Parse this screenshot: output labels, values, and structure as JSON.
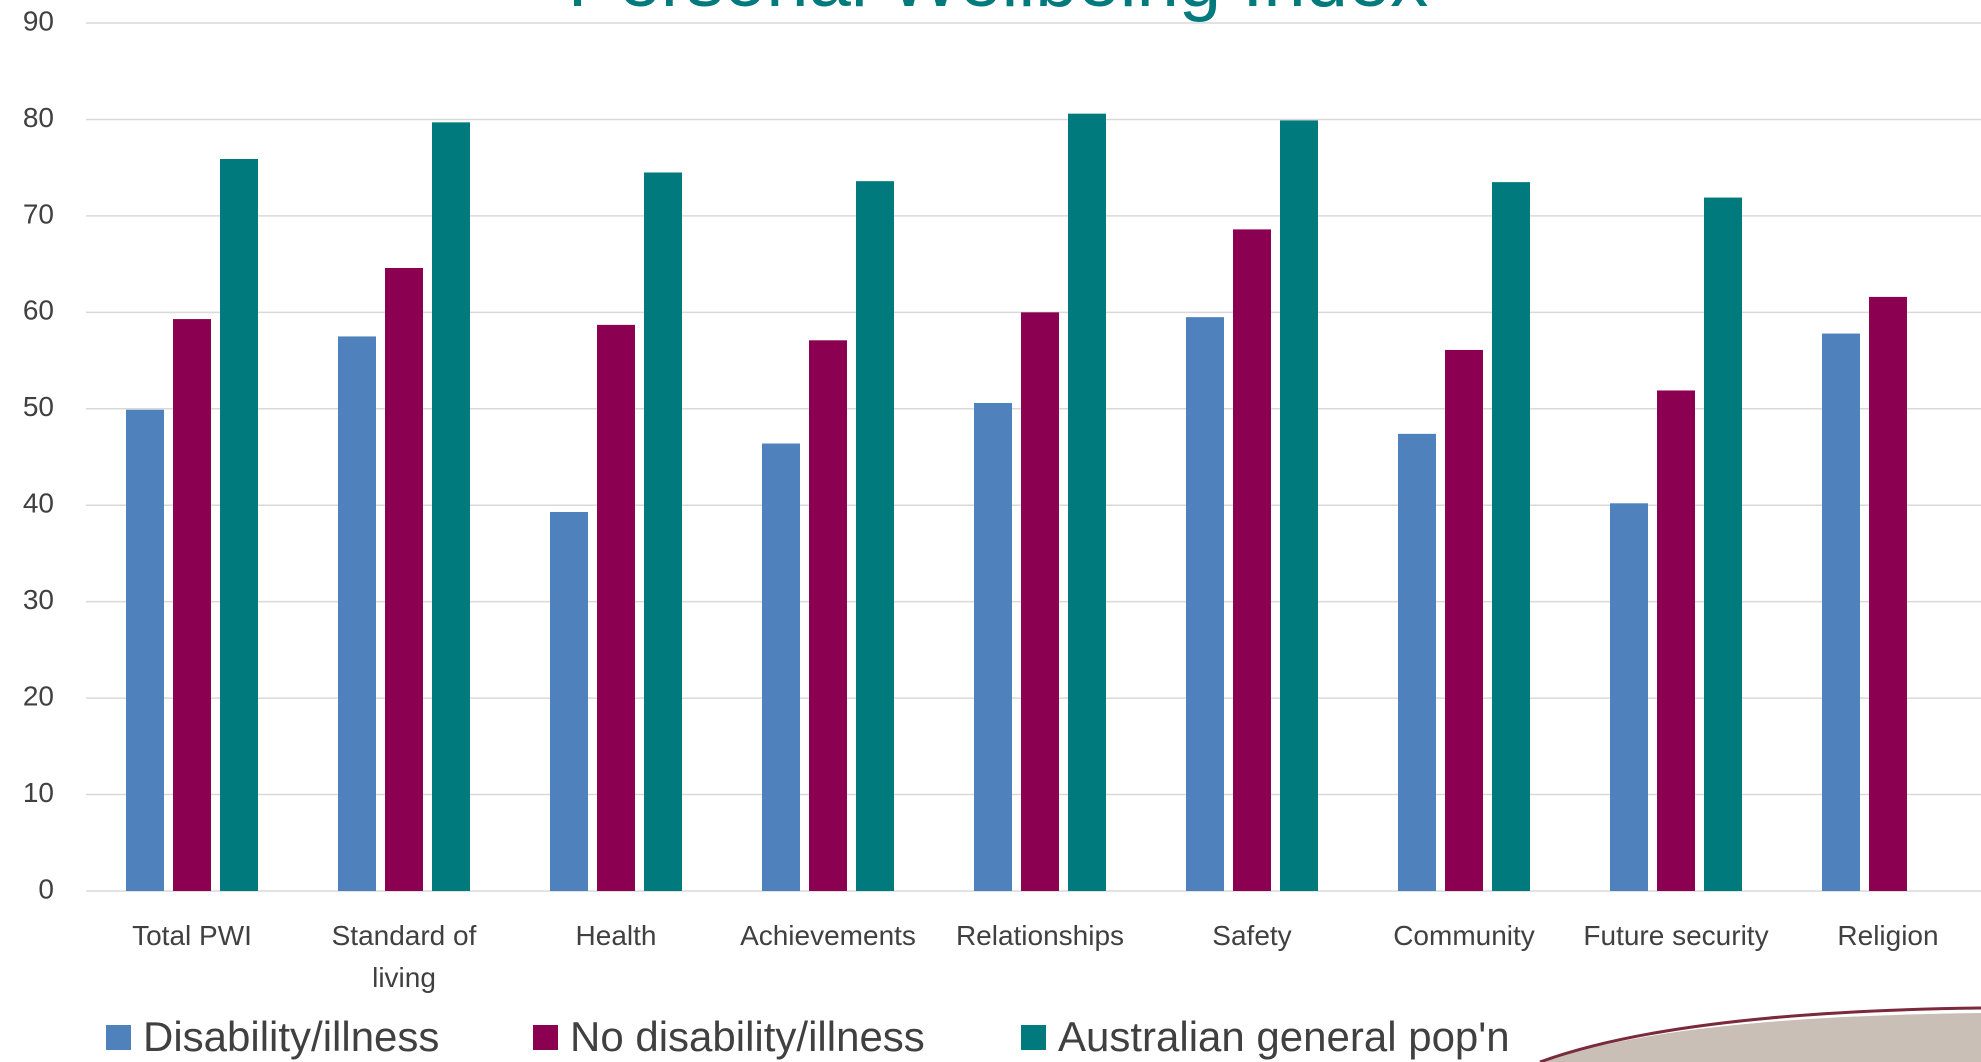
{
  "chart_data": {
    "type": "bar",
    "title": "Personal Wellbeing Index",
    "categories": [
      "Total PWI",
      "Standard of living",
      "Health",
      "Achievements",
      "Relationships",
      "Safety",
      "Community",
      "Future security",
      "Religion"
    ],
    "series": [
      {
        "name": "Disability/illness",
        "color": "#4f81bd",
        "values": [
          49.9,
          57.5,
          39.3,
          46.4,
          50.6,
          59.5,
          47.4,
          40.2,
          57.8
        ]
      },
      {
        "name": "No disability/illness",
        "color": "#8b0051",
        "values": [
          59.3,
          64.6,
          58.7,
          57.1,
          60.0,
          68.6,
          56.1,
          51.9,
          61.6
        ]
      },
      {
        "name": "Australian general pop'n",
        "color": "#007a7c",
        "values": [
          75.9,
          79.7,
          74.5,
          73.6,
          80.6,
          79.9,
          73.5,
          71.9,
          null
        ]
      }
    ],
    "ylim": [
      0,
      90
    ],
    "yticks": [
      0,
      10,
      20,
      30,
      40,
      50,
      60,
      70,
      80,
      90
    ],
    "grid": true
  }
}
